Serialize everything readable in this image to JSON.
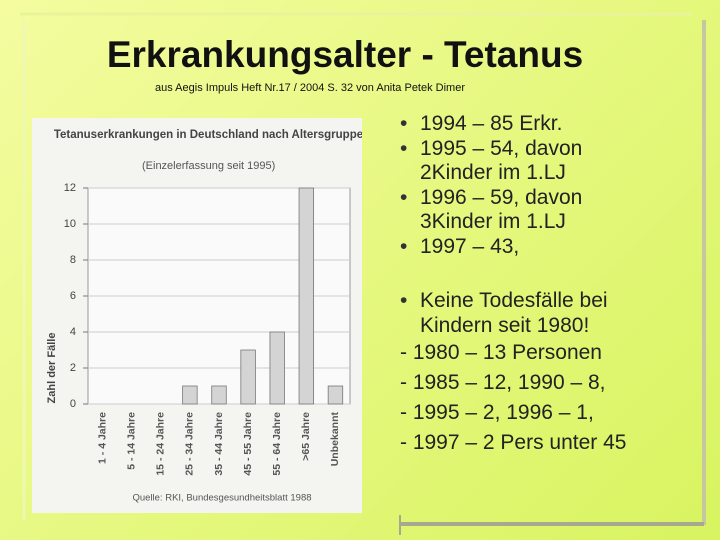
{
  "slide": {
    "title": "Erkrankungsalter  - Tetanus",
    "subtitle": "aus Aegis Impuls Heft Nr.17 / 2004 S. 32 von Anita Petek Dimer",
    "bullets": [
      "1994 – 85 Erkr.",
      "1995 – 54, davon 2Kinder im 1.LJ",
      "1996 – 59,  davon 3Kinder im 1.LJ",
      "1997 – 43,"
    ],
    "bullets2": [
      "Keine Todesfälle bei Kindern seit 1980!"
    ],
    "dash_lines": [
      "- 1980 – 13 Personen",
      "- 1985 – 12, 1990 – 8,",
      "- 1995 – 2, 1996 – 1,",
      "- 1997 – 2 Pers unter 45"
    ]
  },
  "chart_data": {
    "type": "bar",
    "title": "Tetanuserkrankungen in Deutschland nach Altersgruppen",
    "subtitle": "(Einzelerfassung seit 1995)",
    "y_label": "Zahl der Fälle",
    "source": "Quelle: RKI, Bundesgesundheitsblatt 1988",
    "categories": [
      "1 - 4 Jahre",
      "5 - 14 Jahre",
      "15 - 24 Jahre",
      "25 - 34 Jahre",
      "35 - 44 Jahre",
      "45 - 55 Jahre",
      "55 - 64 Jahre",
      ">65 Jahre",
      "Unbekannt"
    ],
    "values": [
      0,
      0,
      0,
      1,
      1,
      3,
      4,
      12,
      1
    ],
    "color": "#d4d4d4",
    "ylim": [
      0,
      12
    ],
    "yticks": [
      0,
      2,
      4,
      6,
      8,
      10,
      12
    ],
    "grid": true
  }
}
